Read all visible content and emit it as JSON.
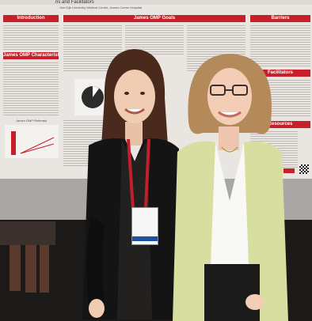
{
  "poster": {
    "title_strip": "ns and Facilitators",
    "authors": "… Van Dijk University Medical Center, James Comer Hospital",
    "sections": {
      "introduction": "Introduction",
      "james_omp_characteristics": "James OMP Characteristics",
      "james_omp_goals": "James OMP Goals",
      "barriers": "Barriers",
      "facilitators": "Facilitators",
      "resources": "Resources"
    },
    "chart_caption": "James OMP Referrals"
  },
  "colors": {
    "poster_red": "#c8202a",
    "poster_bg": "#e9e6e2",
    "jacket_green": "#d7dea0",
    "lanyard_red": "#c21f2d"
  },
  "badge": {
    "label": ""
  }
}
